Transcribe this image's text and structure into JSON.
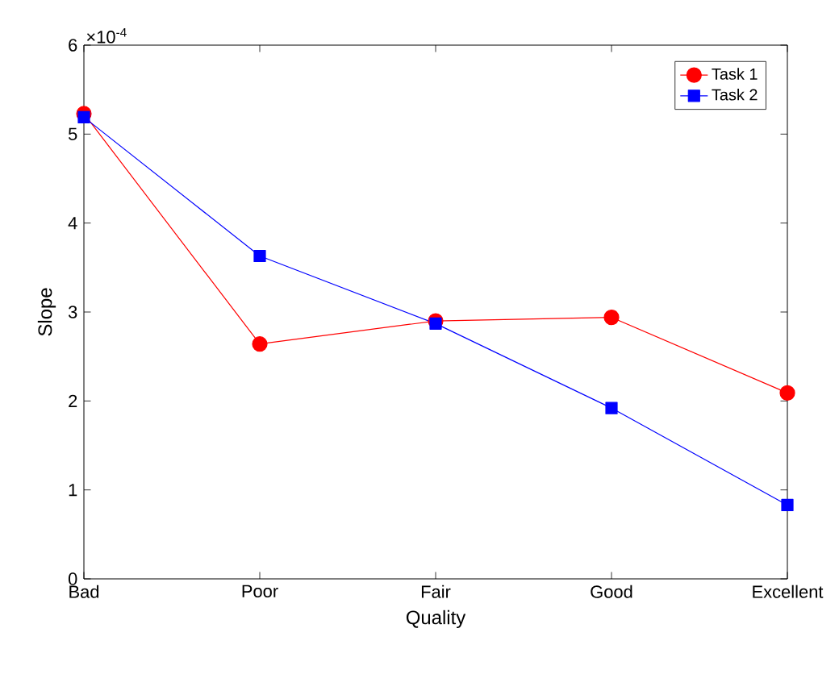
{
  "chart_data": {
    "type": "line",
    "xlabel": "Quality",
    "ylabel": "Slope",
    "categories": [
      "Bad",
      "Poor",
      "Fair",
      "Good",
      "Excellent"
    ],
    "series": [
      {
        "name": "Task 1",
        "color": "#ff0000",
        "marker": "circle",
        "values": [
          5.23,
          2.64,
          2.9,
          2.94,
          2.09
        ]
      },
      {
        "name": "Task 2",
        "color": "#0000ff",
        "marker": "square",
        "values": [
          5.19,
          3.63,
          2.87,
          1.92,
          0.83
        ]
      }
    ],
    "ylim": [
      0,
      6
    ],
    "yticks": [
      0,
      1,
      2,
      3,
      4,
      5,
      6
    ],
    "annotations": [
      "×10$^{-4}$"
    ],
    "legend": "top right",
    "grid": false,
    "line_style": "solid"
  }
}
